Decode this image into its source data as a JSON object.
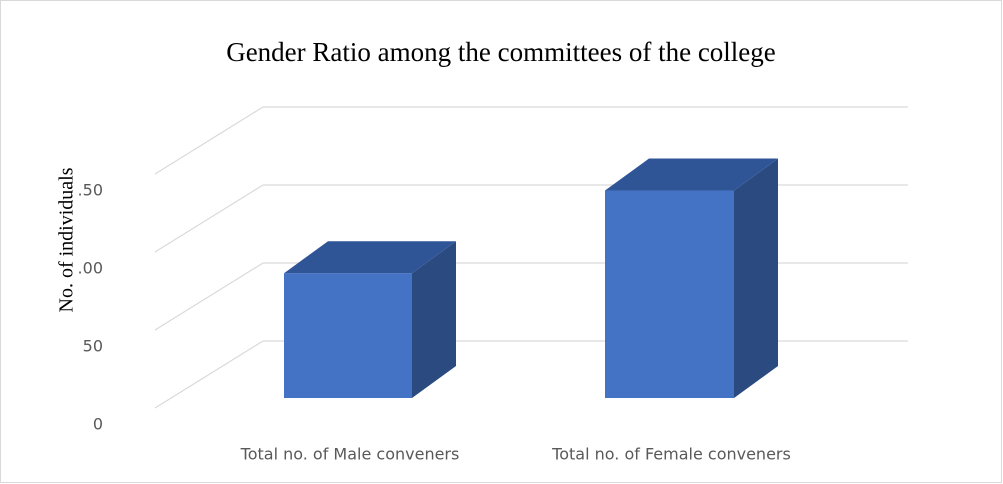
{
  "chart_data": {
    "type": "bar3d",
    "title": "Gender Ratio among the committees of the college",
    "y_label": "No. of individuals",
    "categories": [
      "Total no. of Male conveners",
      "Total no. of Female conveners"
    ],
    "values": [
      80,
      133
    ],
    "color": "#4472c4",
    "ylim": [
      0,
      150
    ],
    "yticks": [
      0,
      50,
      {
        "value": 100,
        "label": ".00"
      },
      {
        "value": 150,
        "label": ".50"
      }
    ],
    "grid": true
  }
}
